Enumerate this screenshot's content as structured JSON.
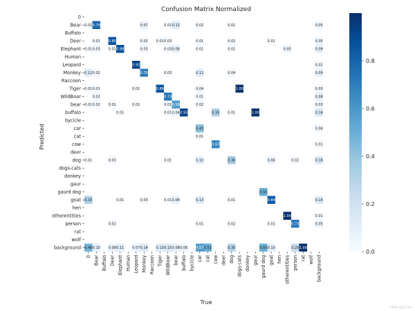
{
  "chart_data": {
    "type": "heatmap",
    "title": "Confusion Matrix Normalized",
    "xlabel": "True",
    "ylabel": "Predicted",
    "labels": [
      "0",
      "Bear",
      "Buffalo",
      "Deer",
      "Elephant",
      "Human",
      "Leopard",
      "Monkey",
      "Raccoon",
      "Tiger",
      "WildBoar",
      "bear",
      "buffalo",
      "bycicle",
      "car",
      "cat",
      "cow",
      "deer",
      "dog",
      "dogs-cats",
      "donkey",
      "gaur",
      "gaurd dog",
      "goat",
      "hen",
      "otherentities",
      "person",
      "rat",
      "wolf",
      "background"
    ],
    "cells": [
      {
        "r": 1,
        "c": 0,
        "v": 0.01
      },
      {
        "r": 1,
        "c": 1,
        "v": 0.79
      },
      {
        "r": 1,
        "c": 7,
        "v": 0.07
      },
      {
        "r": 1,
        "c": 10,
        "v": 0.01
      },
      {
        "r": 1,
        "c": 11,
        "v": 0.12
      },
      {
        "r": 1,
        "c": 14,
        "v": 0.02
      },
      {
        "r": 1,
        "c": 18,
        "v": 0.01
      },
      {
        "r": 1,
        "c": 29,
        "v": 0.05
      },
      {
        "r": 3,
        "c": 1,
        "v": 0.01
      },
      {
        "r": 3,
        "c": 3,
        "v": 0.85
      },
      {
        "r": 3,
        "c": 7,
        "v": 0.02
      },
      {
        "r": 3,
        "c": 9,
        "v": 0.01
      },
      {
        "r": 3,
        "c": 10,
        "v": 0.03
      },
      {
        "r": 3,
        "c": 14,
        "v": 0.01
      },
      {
        "r": 3,
        "c": 18,
        "v": 0.02
      },
      {
        "r": 3,
        "c": 23,
        "v": 0.01
      },
      {
        "r": 3,
        "c": 29,
        "v": 0.05
      },
      {
        "r": 4,
        "c": 0,
        "v": 0.01
      },
      {
        "r": 4,
        "c": 1,
        "v": 0.03
      },
      {
        "r": 4,
        "c": 3,
        "v": 0.01
      },
      {
        "r": 4,
        "c": 4,
        "v": 0.88
      },
      {
        "r": 4,
        "c": 7,
        "v": 0.03
      },
      {
        "r": 4,
        "c": 10,
        "v": 0.03
      },
      {
        "r": 4,
        "c": 11,
        "v": 0.08
      },
      {
        "r": 4,
        "c": 14,
        "v": 0.01
      },
      {
        "r": 4,
        "c": 18,
        "v": 0.01
      },
      {
        "r": 4,
        "c": 25,
        "v": 0.05
      },
      {
        "r": 4,
        "c": 29,
        "v": 0.09
      },
      {
        "r": 6,
        "c": 6,
        "v": 0.92
      },
      {
        "r": 6,
        "c": 29,
        "v": 0.02
      },
      {
        "r": 7,
        "c": 0,
        "v": 0.12
      },
      {
        "r": 7,
        "c": 1,
        "v": 0.02
      },
      {
        "r": 7,
        "c": 7,
        "v": 0.7
      },
      {
        "r": 7,
        "c": 10,
        "v": 0.03
      },
      {
        "r": 7,
        "c": 14,
        "v": 0.12
      },
      {
        "r": 7,
        "c": 18,
        "v": 0.04
      },
      {
        "r": 7,
        "c": 29,
        "v": 0.09
      },
      {
        "r": 9,
        "c": 0,
        "v": 0.01
      },
      {
        "r": 9,
        "c": 1,
        "v": 0.01
      },
      {
        "r": 9,
        "c": 6,
        "v": 0.01
      },
      {
        "r": 9,
        "c": 9,
        "v": 0.86
      },
      {
        "r": 9,
        "c": 14,
        "v": 0.04
      },
      {
        "r": 9,
        "c": 19,
        "v": 1.0
      },
      {
        "r": 9,
        "c": 29,
        "v": 0.03
      },
      {
        "r": 10,
        "c": 1,
        "v": 0.02
      },
      {
        "r": 10,
        "c": 10,
        "v": 0.73
      },
      {
        "r": 10,
        "c": 14,
        "v": 0.01
      },
      {
        "r": 10,
        "c": 29,
        "v": 0.08
      },
      {
        "r": 11,
        "c": 0,
        "v": 0.01
      },
      {
        "r": 11,
        "c": 1,
        "v": 0.02
      },
      {
        "r": 11,
        "c": 3,
        "v": 0.01
      },
      {
        "r": 11,
        "c": 6,
        "v": 0.01
      },
      {
        "r": 11,
        "c": 10,
        "v": 0.01
      },
      {
        "r": 11,
        "c": 11,
        "v": 0.58
      },
      {
        "r": 11,
        "c": 14,
        "v": 0.02
      },
      {
        "r": 11,
        "c": 29,
        "v": 0.03
      },
      {
        "r": 12,
        "c": 4,
        "v": 0.01
      },
      {
        "r": 12,
        "c": 10,
        "v": 0.01
      },
      {
        "r": 12,
        "c": 11,
        "v": 0.04
      },
      {
        "r": 12,
        "c": 12,
        "v": 0.93
      },
      {
        "r": 12,
        "c": 16,
        "v": 0.33
      },
      {
        "r": 12,
        "c": 18,
        "v": 0.01
      },
      {
        "r": 12,
        "c": 21,
        "v": 1.0
      },
      {
        "r": 12,
        "c": 29,
        "v": 0.16
      },
      {
        "r": 14,
        "c": 14,
        "v": 0.43
      },
      {
        "r": 14,
        "c": 29,
        "v": 0.04
      },
      {
        "r": 15,
        "c": 14,
        "v": 0.01
      },
      {
        "r": 16,
        "c": 16,
        "v": 0.67
      },
      {
        "r": 16,
        "c": 29,
        "v": 0.01
      },
      {
        "r": 18,
        "c": 0,
        "v": 0.01
      },
      {
        "r": 18,
        "c": 3,
        "v": 0.03
      },
      {
        "r": 18,
        "c": 10,
        "v": 0.01
      },
      {
        "r": 18,
        "c": 14,
        "v": 0.1
      },
      {
        "r": 18,
        "c": 18,
        "v": 0.36
      },
      {
        "r": 18,
        "c": 23,
        "v": 0.06
      },
      {
        "r": 18,
        "c": 26,
        "v": 0.02
      },
      {
        "r": 18,
        "c": 29,
        "v": 0.16
      },
      {
        "r": 22,
        "c": 22,
        "v": 0.5
      },
      {
        "r": 23,
        "c": 0,
        "v": 0.33
      },
      {
        "r": 23,
        "c": 4,
        "v": 0.01
      },
      {
        "r": 23,
        "c": 7,
        "v": 0.03
      },
      {
        "r": 23,
        "c": 10,
        "v": 0.01
      },
      {
        "r": 23,
        "c": 11,
        "v": 0.08
      },
      {
        "r": 23,
        "c": 14,
        "v": 0.13
      },
      {
        "r": 23,
        "c": 18,
        "v": 0.01
      },
      {
        "r": 23,
        "c": 23,
        "v": 0.84
      },
      {
        "r": 23,
        "c": 29,
        "v": 0.14
      },
      {
        "r": 25,
        "c": 25,
        "v": 1.0
      },
      {
        "r": 25,
        "c": 29,
        "v": 0.01
      },
      {
        "r": 26,
        "c": 3,
        "v": 0.02
      },
      {
        "r": 26,
        "c": 14,
        "v": 0.01
      },
      {
        "r": 26,
        "c": 18,
        "v": 0.02
      },
      {
        "r": 26,
        "c": 23,
        "v": 0.01
      },
      {
        "r": 26,
        "c": 26,
        "v": 0.73
      },
      {
        "r": 26,
        "c": 29,
        "v": 0.05
      },
      {
        "r": 29,
        "c": 0,
        "v": 0.48
      },
      {
        "r": 29,
        "c": 1,
        "v": 0.1
      },
      {
        "r": 29,
        "c": 3,
        "v": 0.08
      },
      {
        "r": 29,
        "c": 4,
        "v": 0.11
      },
      {
        "r": 29,
        "c": 6,
        "v": 0.07
      },
      {
        "r": 29,
        "c": 7,
        "v": 0.14
      },
      {
        "r": 29,
        "c": 9,
        "v": 0.13
      },
      {
        "r": 29,
        "c": 10,
        "v": 0.15
      },
      {
        "r": 29,
        "c": 11,
        "v": 0.08
      },
      {
        "r": 29,
        "c": 12,
        "v": 0.06
      },
      {
        "r": 29,
        "c": 14,
        "v": 0.57
      },
      {
        "r": 29,
        "c": 15,
        "v": 0.51
      },
      {
        "r": 29,
        "c": 18,
        "v": 0.3
      },
      {
        "r": 29,
        "c": 22,
        "v": 0.5
      },
      {
        "r": 29,
        "c": 23,
        "v": 0.1
      },
      {
        "r": 29,
        "c": 26,
        "v": 0.25
      },
      {
        "r": 29,
        "c": 27,
        "v": 1.0
      }
    ],
    "colorbar": {
      "min": 0.0,
      "max": 1.0,
      "ticks": [
        "0.0",
        "0.2",
        "0.4",
        "0.6",
        "0.8"
      ]
    },
    "colormap": [
      "#f7fbff",
      "#deebf7",
      "#c6dbef",
      "#9ecae1",
      "#6baed6",
      "#4292c6",
      "#2171b5",
      "#08519c",
      "#08306b"
    ],
    "grid": false,
    "legend": "colorbar-right"
  },
  "watermark": "CSDN @橙子yolo"
}
